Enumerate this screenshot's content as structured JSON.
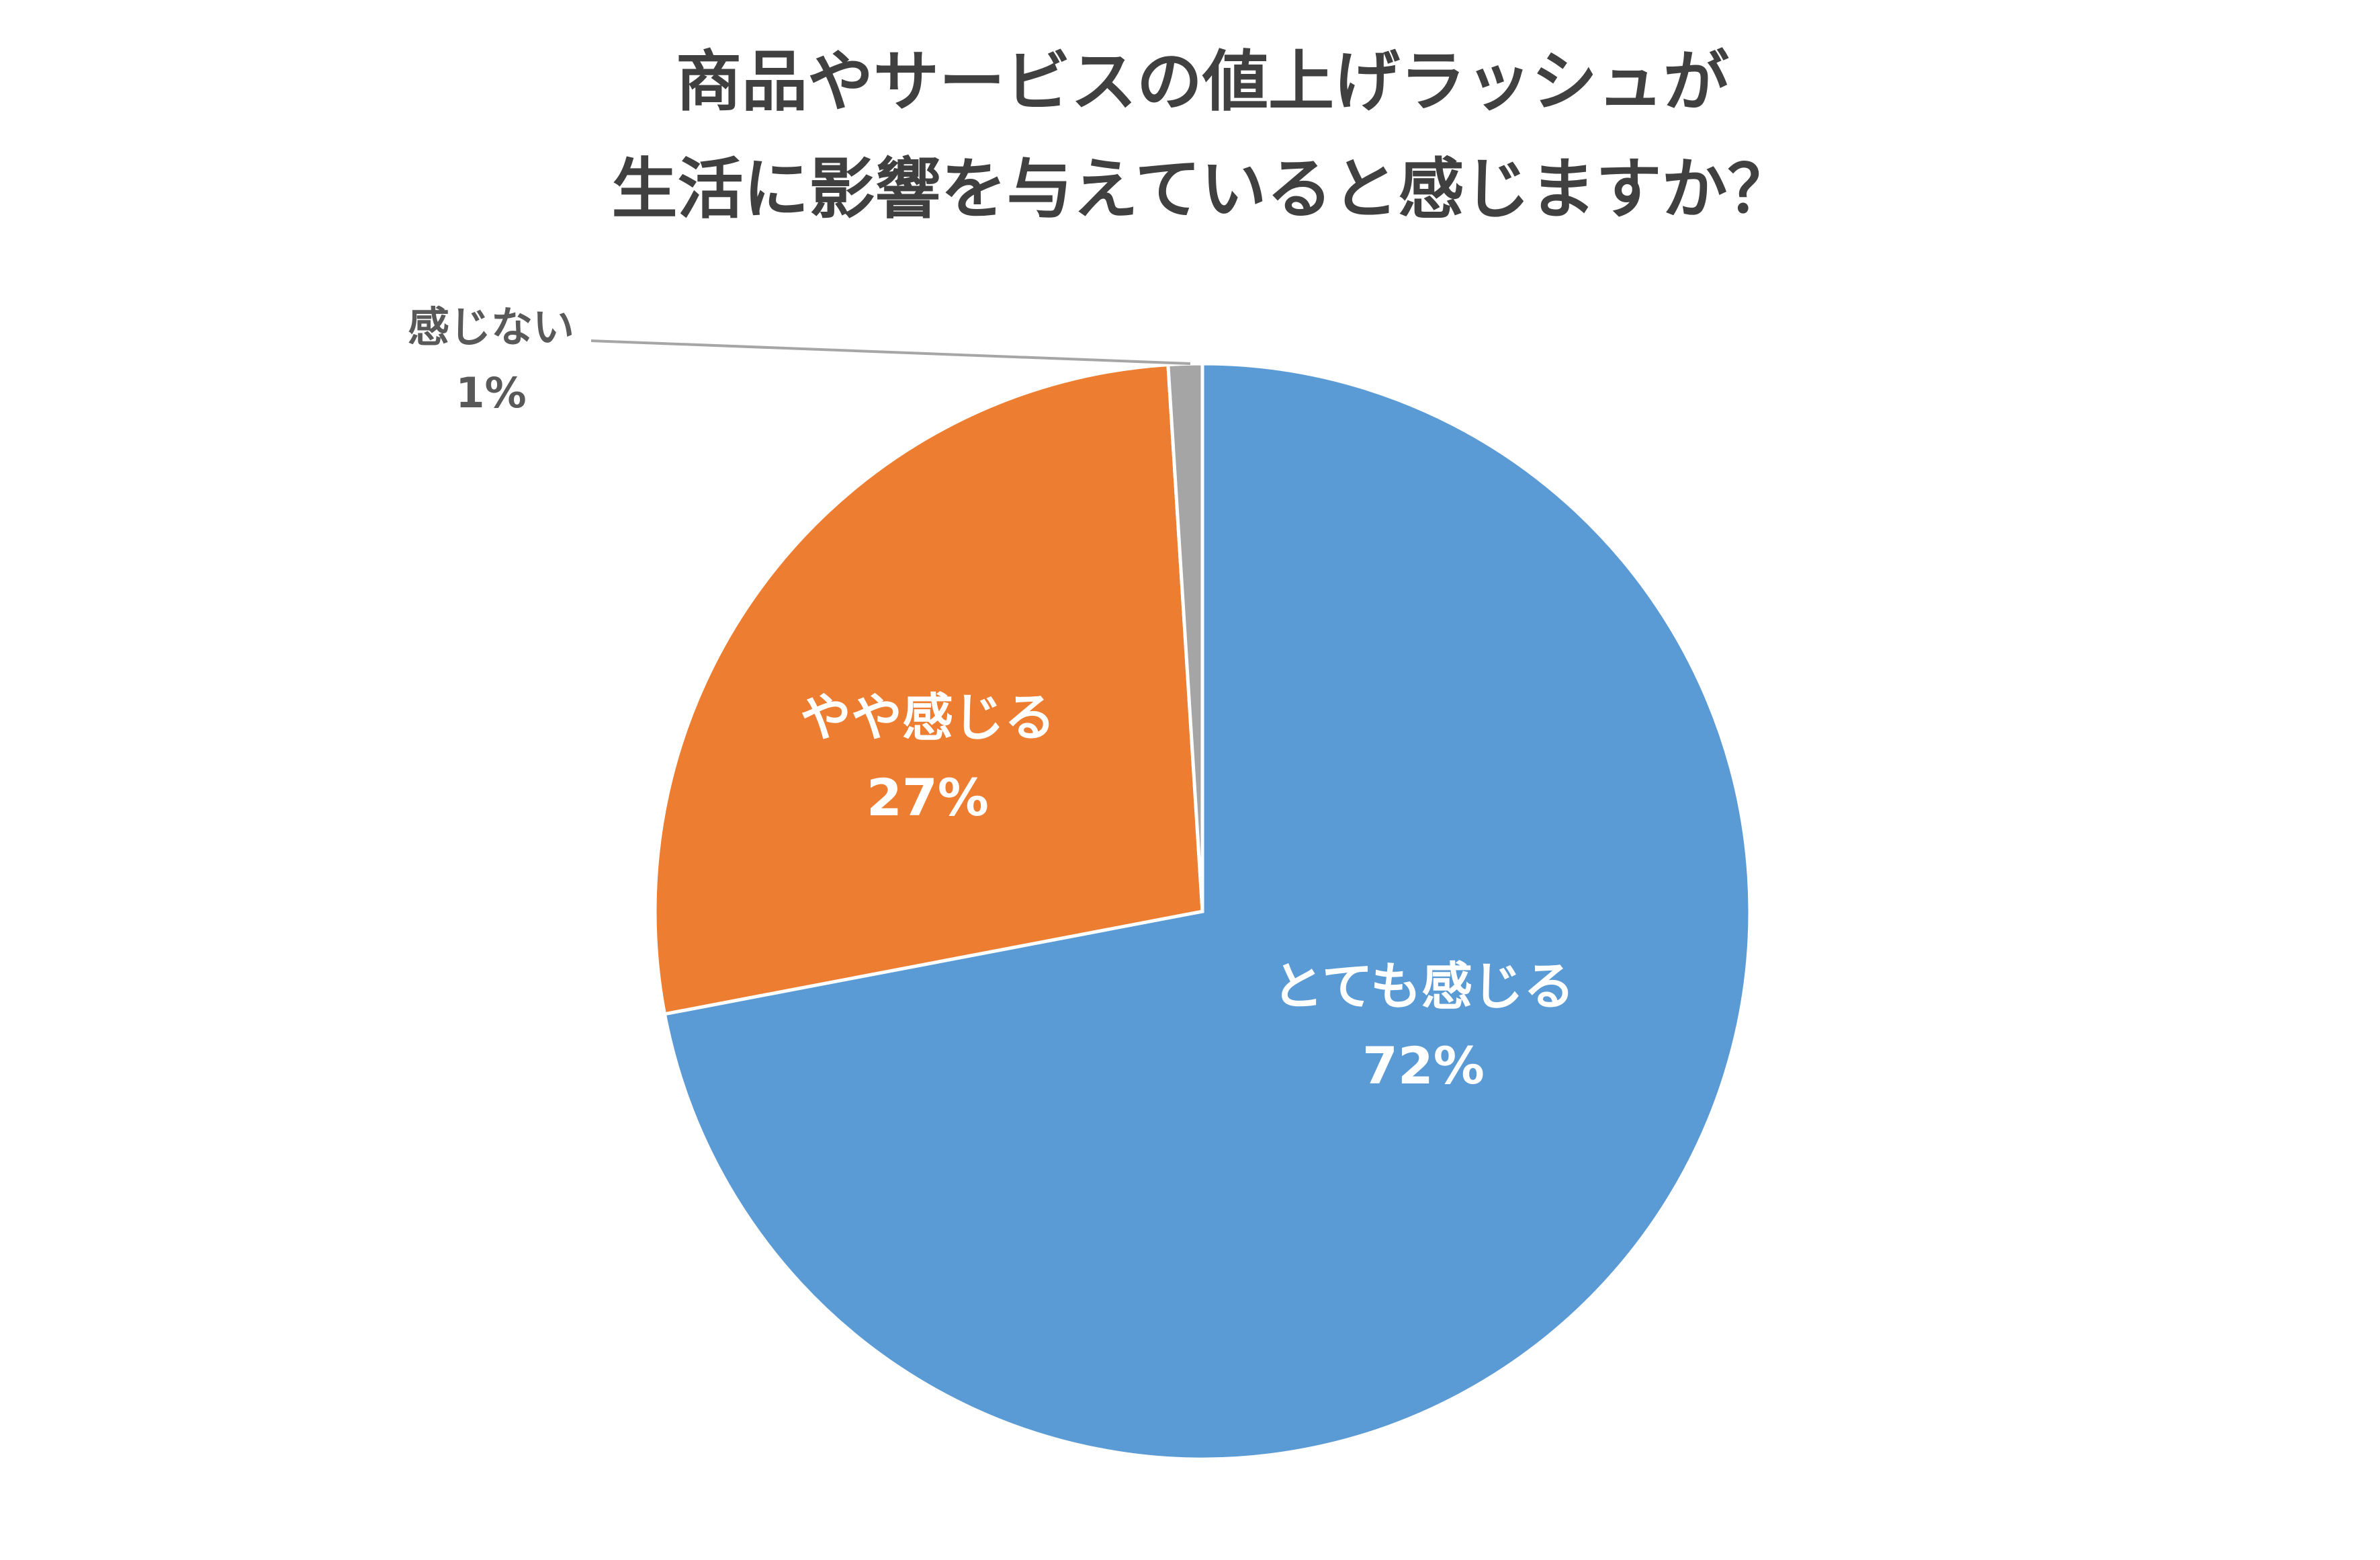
{
  "chart_data": {
    "type": "pie",
    "title": [
      "商品やサービスの値上げラッシュが",
      "生活に影響を与えていると感じますか？"
    ],
    "categories": [
      "とても感じる",
      "やや感じる",
      "感じない"
    ],
    "values": [
      72,
      27,
      1
    ],
    "value_labels": [
      "72%",
      "27%",
      "1%"
    ],
    "colors": [
      "#5b9bd5",
      "#ed7d31",
      "#a5a5a5"
    ]
  }
}
